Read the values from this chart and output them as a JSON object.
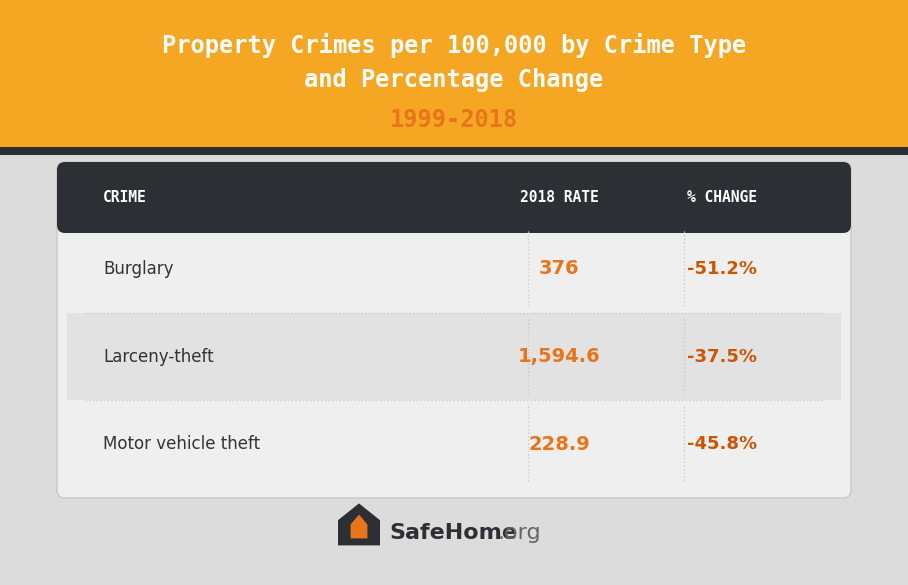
{
  "title_line1": "Property Crimes per 100,000 by Crime Type",
  "title_line2": "and Percentage Change",
  "subtitle": "1999-2018",
  "header_bg_color": "#F5A623",
  "header_text_color": "#FFFFFF",
  "subtitle_color": "#E8751A",
  "table_header_bg": "#2C3035",
  "table_header_text": "#FFFFFF",
  "table_bg_light": "#EFEFEF",
  "table_bg_dark": "#E2E2E2",
  "table_text_color": "#333333",
  "value_color": "#E8751A",
  "change_color": "#CC5500",
  "divider_color": "#CCCCCC",
  "col_headers": [
    "CRIME",
    "2018 RATE",
    "% CHANGE"
  ],
  "rows": [
    [
      "Burglary",
      "376",
      "-51.2%"
    ],
    [
      "Larceny-theft",
      "1,594.6",
      "-37.5%"
    ],
    [
      "Motor vehicle theft",
      "228.9",
      "-45.8%"
    ]
  ],
  "outer_bg": "#DCDCDC",
  "table_border_color": "#C8C8C8"
}
